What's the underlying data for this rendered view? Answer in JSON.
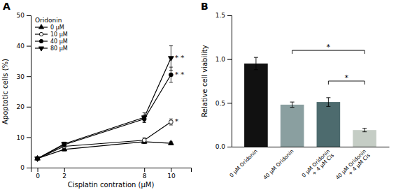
{
  "chart_data": [
    {
      "type": "line",
      "title": "A",
      "x": [
        0,
        2,
        8,
        10
      ],
      "series": [
        {
          "name": "0 μM",
          "color": "black",
          "marker": "triangle-up",
          "values": [
            3.0,
            6.0,
            8.5,
            8.0
          ],
          "yerr": [
            0.3,
            0.5,
            0.6,
            0.5
          ]
        },
        {
          "name": "10 μM",
          "color": "black",
          "marker": "open-circle",
          "values": [
            3.0,
            7.0,
            9.0,
            15.0
          ],
          "yerr": [
            0.3,
            0.6,
            0.8,
            1.0
          ]
        },
        {
          "name": "40 μM",
          "color": "black",
          "marker": "circle",
          "values": [
            3.0,
            7.5,
            16.0,
            30.5
          ],
          "yerr": [
            0.3,
            0.6,
            1.2,
            2.5
          ]
        },
        {
          "name": "80 μM",
          "color": "black",
          "marker": "triangle-down",
          "values": [
            3.0,
            7.8,
            16.5,
            36.0
          ],
          "yerr": [
            0.3,
            0.6,
            1.5,
            4.0
          ]
        }
      ],
      "xlabel": "Cisplatin contration (μM)",
      "ylabel": "Apoptotic cells (%)",
      "xlim": [
        -0.5,
        11.5
      ],
      "ylim": [
        0,
        50
      ],
      "xticks": [
        0,
        2,
        8,
        10
      ],
      "yticks": [
        0,
        10,
        20,
        30,
        40,
        50
      ],
      "grid": false,
      "legend": "upper left",
      "legend_title": "Oridonin",
      "annotations": [
        {
          "text": "* *",
          "x": 10.3,
          "y": 36.0
        },
        {
          "text": "* *",
          "x": 10.3,
          "y": 30.5
        },
        {
          "text": "*",
          "x": 10.3,
          "y": 15.0
        }
      ]
    },
    {
      "type": "bar",
      "title": "B",
      "categories": [
        "0 μM Oridonin",
        "40 μM Oridonin",
        "0 μM Oridonin\n+ 4 μM Cis",
        "40 μM Oridonin\n+ 4 μM Cis"
      ],
      "values": [
        0.95,
        0.48,
        0.51,
        0.19
      ],
      "yerr": [
        0.07,
        0.03,
        0.05,
        0.02
      ],
      "colors": [
        "#111111",
        "#8a9fa0",
        "#4d6b6e",
        "#c5cdc5"
      ],
      "ylabel": "Relative cell viability",
      "ylim": [
        0,
        1.5
      ],
      "yticks": [
        {
          "value": 0.0,
          "label": "0.0"
        },
        0.5,
        {
          "value": 1.0,
          "label": "1.0"
        },
        1.5
      ],
      "grid": false,
      "annotations": [
        {
          "text": "*",
          "x1": "40 μM Oridonin",
          "x2": "40 μM Oridonin\n+ 4 μM Cis",
          "y": 1.1
        },
        {
          "text": "*",
          "x1": "0 μM Oridonin\n+ 4 μM Cis",
          "x2": "40 μM Oridonin\n+ 4 μM Cis",
          "y": 0.75
        }
      ]
    }
  ]
}
